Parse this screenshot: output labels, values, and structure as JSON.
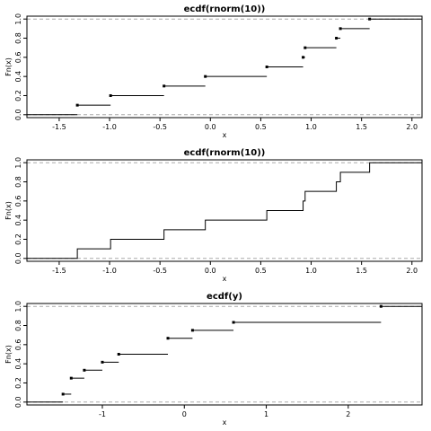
{
  "chart_data": [
    {
      "type": "line",
      "subtype": "ecdf-step",
      "title": "ecdf(rnorm(10))",
      "xlabel": "x",
      "ylabel": "Fn(x)",
      "xlim": [
        -1.82,
        2.1
      ],
      "ylim": [
        -0.03,
        1.03
      ],
      "xticks": [
        -1.5,
        -1.0,
        -0.5,
        0.0,
        0.5,
        1.0,
        1.5,
        2.0
      ],
      "xtick_labels": [
        "-1.5",
        "-1.0",
        "-0.5",
        "0.0",
        "0.5",
        "1.0",
        "1.5",
        "2.0"
      ],
      "yticks": [
        0.0,
        0.2,
        0.4,
        0.6,
        0.8,
        1.0
      ],
      "ytick_labels": [
        "0.0",
        "0.2",
        "0.4",
        "0.6",
        "0.8",
        "1.0"
      ],
      "verticals": false,
      "show_points": true,
      "x": [
        -1.32,
        -0.99,
        -0.46,
        -0.05,
        0.56,
        0.92,
        0.94,
        1.25,
        1.29,
        1.58
      ],
      "y": [
        0.1,
        0.2,
        0.3,
        0.4,
        0.5,
        0.6,
        0.7,
        0.8,
        0.9,
        1.0
      ]
    },
    {
      "type": "line",
      "subtype": "ecdf-step",
      "title": "ecdf(rnorm(10))",
      "xlabel": "x",
      "ylabel": "Fn(x)",
      "xlim": [
        -1.82,
        2.1
      ],
      "ylim": [
        -0.03,
        1.03
      ],
      "xticks": [
        -1.5,
        -1.0,
        -0.5,
        0.0,
        0.5,
        1.0,
        1.5,
        2.0
      ],
      "xtick_labels": [
        "-1.5",
        "-1.0",
        "-0.5",
        "0.0",
        "0.5",
        "1.0",
        "1.5",
        "2.0"
      ],
      "yticks": [
        0.0,
        0.2,
        0.4,
        0.6,
        0.8,
        1.0
      ],
      "ytick_labels": [
        "0.0",
        "0.2",
        "0.4",
        "0.6",
        "0.8",
        "1.0"
      ],
      "verticals": true,
      "show_points": false,
      "x": [
        -1.32,
        -0.99,
        -0.46,
        -0.05,
        0.56,
        0.92,
        0.94,
        1.25,
        1.29,
        1.58
      ],
      "y": [
        0.1,
        0.2,
        0.3,
        0.4,
        0.5,
        0.6,
        0.7,
        0.8,
        0.9,
        1.0
      ]
    },
    {
      "type": "line",
      "subtype": "ecdf-step",
      "title": "ecdf(y)",
      "xlabel": "x",
      "ylabel": "Fn(x)",
      "xlim": [
        -1.92,
        2.9
      ],
      "ylim": [
        -0.03,
        1.03
      ],
      "xticks": [
        -1,
        0,
        1,
        2
      ],
      "xtick_labels": [
        "-1",
        "0",
        "1",
        "2"
      ],
      "yticks": [
        0.0,
        0.2,
        0.4,
        0.6,
        0.8,
        1.0
      ],
      "ytick_labels": [
        "0.0",
        "0.2",
        "0.4",
        "0.6",
        "0.8",
        "1.0"
      ],
      "verticals": false,
      "show_points": true,
      "x": [
        -1.48,
        -1.38,
        -1.22,
        -1.0,
        -0.8,
        -0.2,
        0.1,
        0.6,
        2.4
      ],
      "y": [
        0.083,
        0.25,
        0.333,
        0.417,
        0.5,
        0.667,
        0.75,
        0.833,
        1.0
      ]
    }
  ],
  "colors": {
    "step": "#000000",
    "reference": "#aaaaaa",
    "frame": "#000000"
  }
}
